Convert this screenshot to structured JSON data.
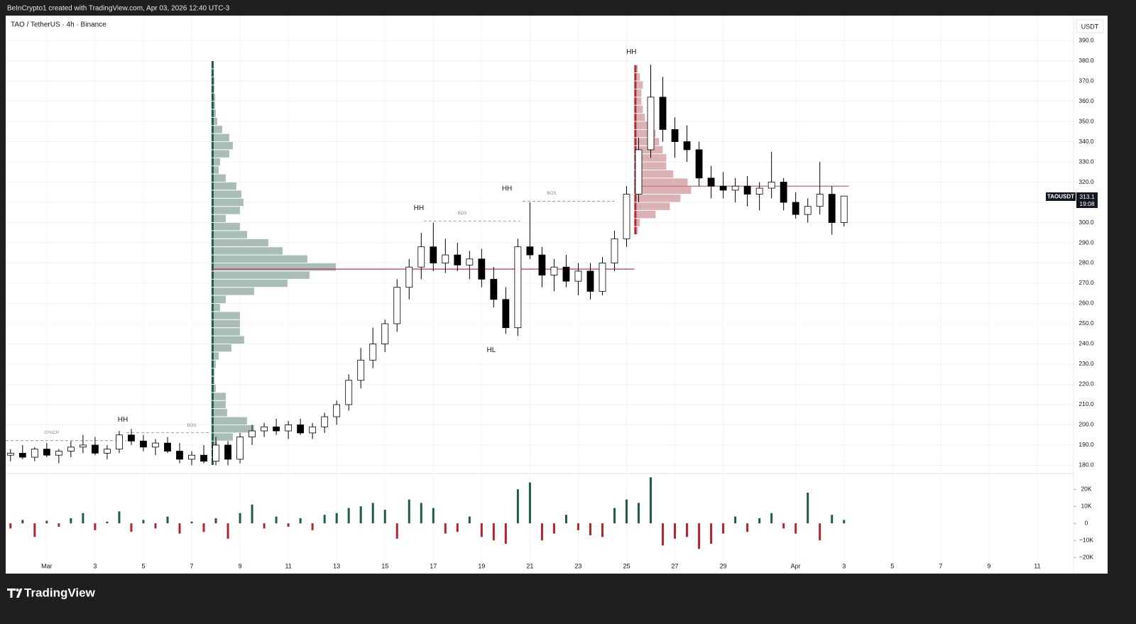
{
  "header": {
    "credit": "BeInCrypto1 created with TradingView.com, Apr 03, 2026 12:40 UTC-3"
  },
  "footer": {
    "brand": "TradingView"
  },
  "chart_data": {
    "type": "candlestick",
    "title": "TAO / TetherUS · 4h · Binance",
    "currency": "USDT",
    "symbol": "TAOUSDT",
    "countdown": "19:08",
    "grid": true,
    "up_color": "#ffffff",
    "down_color": "#000000",
    "ylim": [
      177,
      402.3
    ],
    "yticks": [
      {
        "value": 180,
        "label": "180.0"
      },
      {
        "value": 190,
        "label": "190.0"
      },
      {
        "value": 200,
        "label": "200.0"
      },
      {
        "value": 210,
        "label": "210.0"
      },
      {
        "value": 220,
        "label": "220.0"
      },
      {
        "value": 230,
        "label": "230.0"
      },
      {
        "value": 240,
        "label": "240.0"
      },
      {
        "value": 250,
        "label": "250.0"
      },
      {
        "value": 260,
        "label": "260.0"
      },
      {
        "value": 270,
        "label": "270.0"
      },
      {
        "value": 280,
        "label": "280.0"
      },
      {
        "value": 290,
        "label": "290.0"
      },
      {
        "value": 300,
        "label": "300.0"
      },
      {
        "value": 310,
        "label": "310.0"
      },
      {
        "value": 320,
        "label": "320.0"
      },
      {
        "value": 330,
        "label": "330.0"
      },
      {
        "value": 340,
        "label": "340.0"
      },
      {
        "value": 350,
        "label": "350.0"
      },
      {
        "value": 360,
        "label": "360.0"
      },
      {
        "value": 370,
        "label": "370.0"
      },
      {
        "value": 380,
        "label": "380.0"
      },
      {
        "value": 390,
        "label": "390.0"
      }
    ],
    "xlim": [
      -1.7,
      42.5
    ],
    "xticks": [
      {
        "value": 0,
        "label": "Mar"
      },
      {
        "value": 2,
        "label": "3"
      },
      {
        "value": 4,
        "label": "5"
      },
      {
        "value": 6,
        "label": "7"
      },
      {
        "value": 8,
        "label": "9"
      },
      {
        "value": 10,
        "label": "11"
      },
      {
        "value": 12,
        "label": "13"
      },
      {
        "value": 14,
        "label": "15"
      },
      {
        "value": 16,
        "label": "17"
      },
      {
        "value": 18,
        "label": "19"
      },
      {
        "value": 20,
        "label": "21"
      },
      {
        "value": 22,
        "label": "23"
      },
      {
        "value": 24,
        "label": "25"
      },
      {
        "value": 26,
        "label": "27"
      },
      {
        "value": 28,
        "label": "29"
      },
      {
        "value": 31,
        "label": "Apr"
      },
      {
        "value": 33,
        "label": "3"
      },
      {
        "value": 35,
        "label": "5"
      },
      {
        "value": 37,
        "label": "7"
      },
      {
        "value": 39,
        "label": "9"
      },
      {
        "value": 41,
        "label": "11"
      }
    ],
    "x": [
      -1.5,
      -1,
      -0.5,
      0,
      0.5,
      1,
      1.5,
      2,
      2.5,
      3,
      3.5,
      4,
      4.5,
      5,
      5.5,
      6,
      6.5,
      7,
      7.5,
      8,
      8.5,
      9,
      9.5,
      10,
      10.5,
      11,
      11.5,
      12,
      12.5,
      13,
      13.5,
      14,
      14.5,
      15,
      15.5,
      16,
      16.5,
      17,
      17.5,
      18,
      18.5,
      19,
      19.5,
      20,
      20.5,
      21,
      21.5,
      22,
      22.5,
      23,
      23.5,
      24,
      24.5,
      25,
      25.5,
      26,
      26.5,
      27,
      27.5,
      28,
      28.5,
      29,
      29.5,
      30,
      30.5,
      31,
      31.5,
      32,
      32.5,
      33
    ],
    "open": [
      185,
      186,
      184,
      188,
      185,
      187,
      189,
      190,
      186,
      188,
      195,
      192,
      189,
      191,
      187,
      183,
      185,
      182,
      190,
      183,
      194,
      197,
      199,
      197,
      200,
      196,
      199,
      204,
      210,
      222,
      232,
      240,
      250,
      268,
      278,
      288,
      280,
      284,
      279,
      282,
      272,
      262,
      248,
      288,
      284,
      274,
      278,
      271,
      276,
      266,
      280,
      292,
      314,
      336,
      362,
      346,
      340,
      336,
      322,
      318,
      316,
      318,
      314,
      317,
      320,
      310,
      304,
      308,
      314,
      300
    ],
    "high": [
      188,
      190,
      189,
      191,
      188,
      192,
      195,
      194,
      190,
      197,
      198,
      195,
      193,
      194,
      191,
      187,
      190,
      194,
      192,
      196,
      200,
      201,
      203,
      202,
      203,
      201,
      206,
      212,
      225,
      238,
      248,
      252,
      272,
      282,
      295,
      300,
      292,
      290,
      286,
      287,
      278,
      268,
      292,
      310,
      288,
      282,
      284,
      280,
      280,
      283,
      296,
      318,
      342,
      378,
      372,
      352,
      348,
      340,
      328,
      325,
      322,
      323,
      320,
      335,
      322,
      315,
      312,
      330,
      318,
      313.1
    ],
    "low": [
      182,
      183,
      182,
      184,
      181,
      184,
      186,
      185,
      183,
      186,
      190,
      187,
      185,
      186,
      181,
      180,
      181,
      180,
      180,
      181,
      190,
      194,
      195,
      193,
      195,
      193,
      196,
      200,
      207,
      218,
      228,
      236,
      246,
      262,
      272,
      276,
      275,
      276,
      272,
      268,
      258,
      245,
      244,
      282,
      268,
      266,
      268,
      264,
      262,
      264,
      276,
      288,
      310,
      332,
      340,
      332,
      330,
      318,
      312,
      312,
      310,
      308,
      306,
      312,
      306,
      302,
      300,
      304,
      294,
      298
    ],
    "close": [
      186,
      184,
      188,
      185,
      187,
      189,
      190,
      186,
      188,
      195,
      192,
      189,
      191,
      187,
      183,
      185,
      182,
      190,
      183,
      194,
      197,
      199,
      197,
      200,
      196,
      199,
      204,
      210,
      222,
      232,
      240,
      250,
      268,
      278,
      288,
      280,
      284,
      279,
      282,
      272,
      262,
      248,
      288,
      284,
      274,
      278,
      271,
      276,
      266,
      280,
      292,
      314,
      336,
      362,
      346,
      340,
      336,
      322,
      318,
      316,
      318,
      314,
      317,
      320,
      310,
      304,
      308,
      314,
      300,
      313.1
    ],
    "volume": {
      "values": [
        -3000,
        2000,
        -8000,
        1500,
        -2000,
        3000,
        6000,
        -4000,
        1000,
        7000,
        -5000,
        2000,
        -3000,
        4000,
        -6000,
        1000,
        -5000,
        3000,
        -9000,
        6000,
        11000,
        -3000,
        4000,
        -2000,
        3000,
        -4000,
        5000,
        6000,
        9000,
        10000,
        12000,
        8000,
        -9000,
        14000,
        12000,
        9000,
        -6000,
        -5000,
        4000,
        -8000,
        -10000,
        -12000,
        20000,
        24000,
        -10000,
        -6000,
        5000,
        -4000,
        -7000,
        -8000,
        9000,
        14000,
        12000,
        27000,
        -13000,
        -9000,
        -8000,
        -15000,
        -12000,
        -6000,
        4000,
        -5000,
        3000,
        6000,
        -3000,
        -6000,
        18000,
        -10000,
        5000,
        2000
      ],
      "ylim": [
        -22000,
        28000
      ],
      "yticks": [
        {
          "value": 20000,
          "label": "20K"
        },
        {
          "value": 10000,
          "label": "10K"
        },
        0,
        {
          "value": -10000,
          "label": "−10K"
        },
        {
          "value": -20000,
          "label": "−20K"
        }
      ],
      "up_color": "#1e5c4a",
      "down_color": "#b2232d"
    },
    "profiles": [
      {
        "anchor_x": 6.82,
        "color": "#a9bdb7",
        "prices": [
          182,
          186,
          190,
          194,
          198,
          202,
          206,
          210,
          214,
          218,
          222,
          226,
          230,
          234,
          238,
          242,
          246,
          250,
          254,
          258,
          262,
          266,
          270,
          274,
          278,
          282,
          286,
          290,
          294,
          298,
          302,
          306,
          310,
          314,
          318,
          322,
          326,
          330,
          334,
          338,
          342,
          346,
          350,
          354,
          358,
          362,
          366,
          370,
          374,
          378
        ],
        "volumes": [
          2,
          3,
          8,
          30,
          60,
          50,
          22,
          20,
          20,
          6,
          4,
          4,
          6,
          10,
          28,
          46,
          40,
          40,
          40,
          12,
          20,
          60,
          107,
          138,
          175,
          135,
          100,
          80,
          50,
          40,
          20,
          40,
          45,
          42,
          35,
          20,
          10,
          12,
          25,
          30,
          25,
          15,
          8,
          6,
          5,
          5,
          4,
          4,
          3,
          2
        ]
      },
      {
        "anchor_x": 24.32,
        "color": "#dcb1b5",
        "prices": [
          296,
          300,
          304,
          308,
          312,
          316,
          320,
          324,
          328,
          332,
          336,
          340,
          344,
          348,
          352,
          356,
          360,
          364,
          368,
          372,
          376
        ],
        "volumes": [
          5,
          8,
          30,
          50,
          65,
          80,
          75,
          55,
          45,
          45,
          40,
          35,
          30,
          25,
          15,
          12,
          10,
          10,
          12,
          8,
          5
        ]
      }
    ],
    "levels": [
      {
        "price": 277,
        "x": [
          6.82,
          24.32
        ],
        "color": "#b22833",
        "style": "solid"
      },
      {
        "price": 318,
        "x": [
          24.32,
          33.2
        ],
        "color": "#c96a72",
        "style": "solid"
      },
      {
        "price": 192.2,
        "x": [
          -1.7,
          3.3
        ],
        "color": "#888888",
        "style": "dashed"
      },
      {
        "price": 196.2,
        "x": [
          3.3,
          6.8
        ],
        "color": "#888888",
        "style": "dashed"
      },
      {
        "price": 300.7,
        "x": [
          15.6,
          19.6
        ],
        "color": "#888888",
        "style": "dashed"
      },
      {
        "price": 310.5,
        "x": [
          19.7,
          23.5
        ],
        "color": "#888888",
        "style": "dashed"
      }
    ],
    "annotations": [
      {
        "text": "HH",
        "x": 3.15,
        "y": 202.5
      },
      {
        "text": "HH",
        "x": 15.4,
        "y": 307
      },
      {
        "text": "HH",
        "x": 19.05,
        "y": 316.8
      },
      {
        "text": "HH",
        "x": 24.2,
        "y": 384.2
      },
      {
        "text": "HL",
        "x": 18.4,
        "y": 236.8
      },
      {
        "text": "BOS",
        "x": 6,
        "y": 199.6
      },
      {
        "text": "BOS",
        "x": 17.2,
        "y": 304.6
      },
      {
        "text": "BOS",
        "x": 20.9,
        "y": 314.4
      },
      {
        "text": "CHoCH",
        "x": 0.2,
        "y": 196.1
      }
    ]
  }
}
